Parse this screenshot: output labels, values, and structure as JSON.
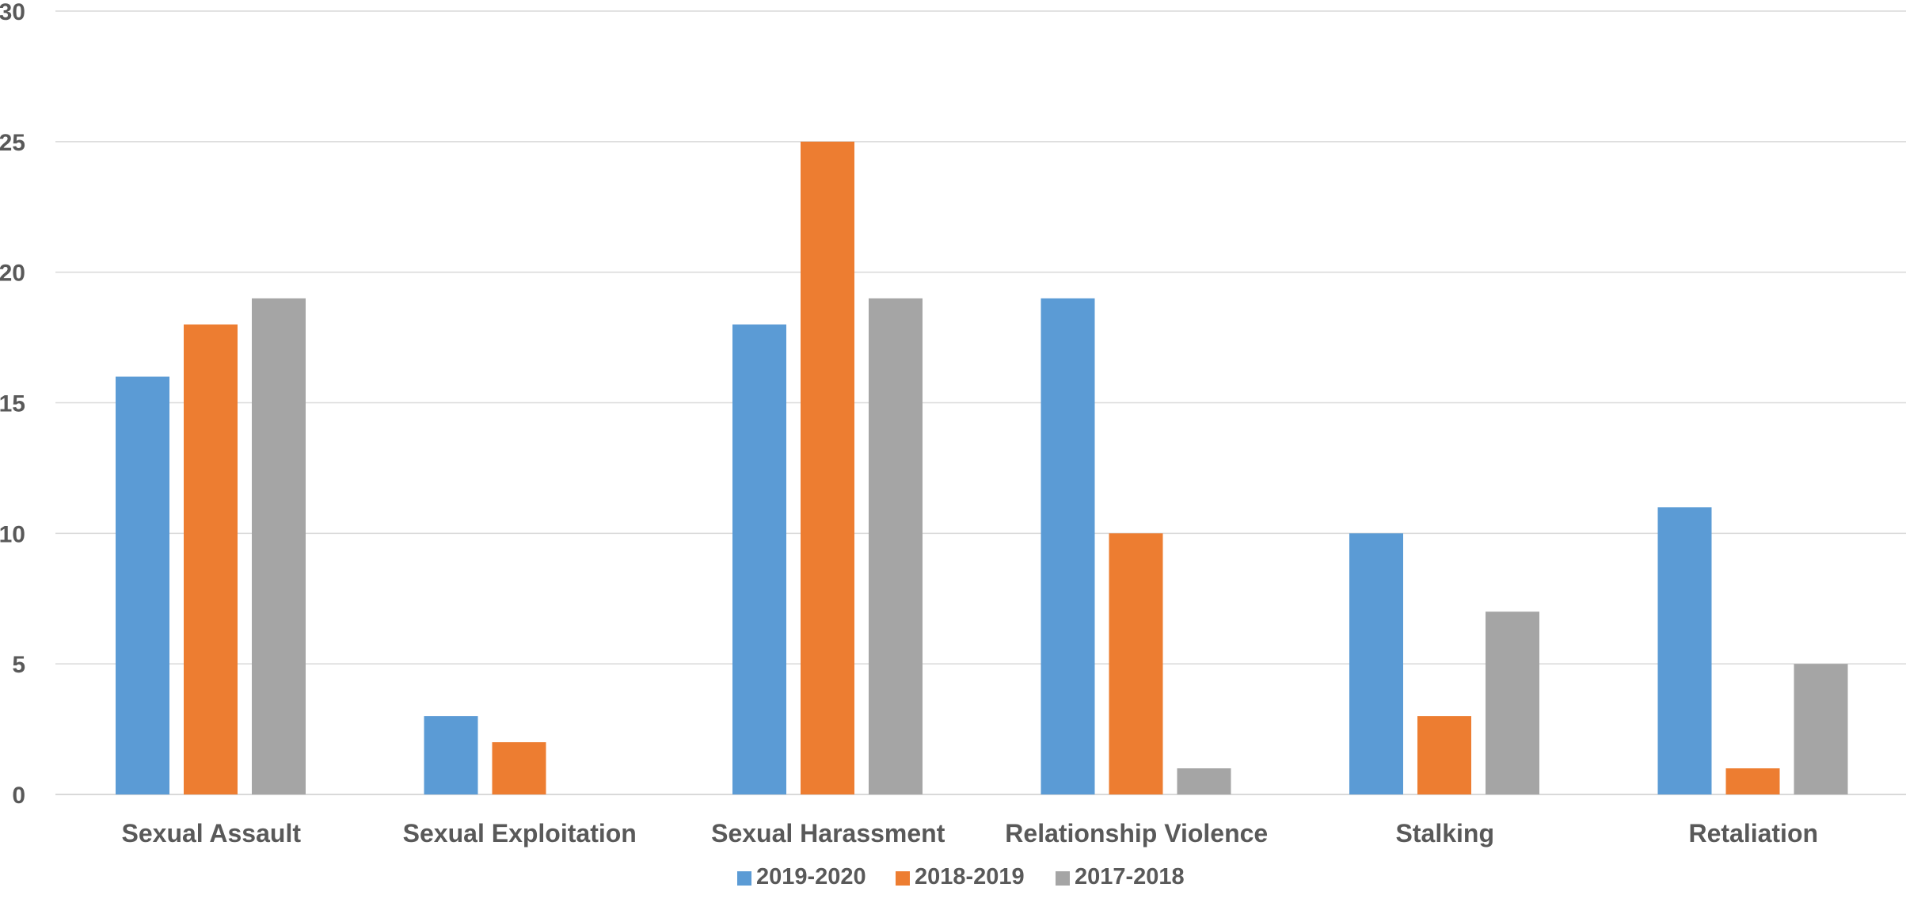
{
  "chart_data": {
    "type": "bar",
    "categories": [
      "Sexual Assault",
      "Sexual Exploitation",
      "Sexual Harassment",
      "Relationship Violence",
      "Stalking",
      "Retaliation"
    ],
    "series": [
      {
        "name": "2019-2020",
        "color": "#5b9bd5",
        "values": [
          16,
          3,
          18,
          19,
          10,
          11
        ]
      },
      {
        "name": "2018-2019",
        "color": "#ed7d31",
        "values": [
          18,
          2,
          25,
          10,
          3,
          1
        ]
      },
      {
        "name": "2017-2018",
        "color": "#a5a5a5",
        "values": [
          19,
          0,
          19,
          1,
          7,
          5
        ]
      }
    ],
    "ylim": [
      0,
      30
    ],
    "yticks": [
      "0",
      "5",
      "10",
      "15",
      "20",
      "25",
      "30"
    ],
    "grid": true,
    "legend_position": "bottom",
    "gridline_color": "#d9d9d9",
    "label_color": "#595959"
  }
}
